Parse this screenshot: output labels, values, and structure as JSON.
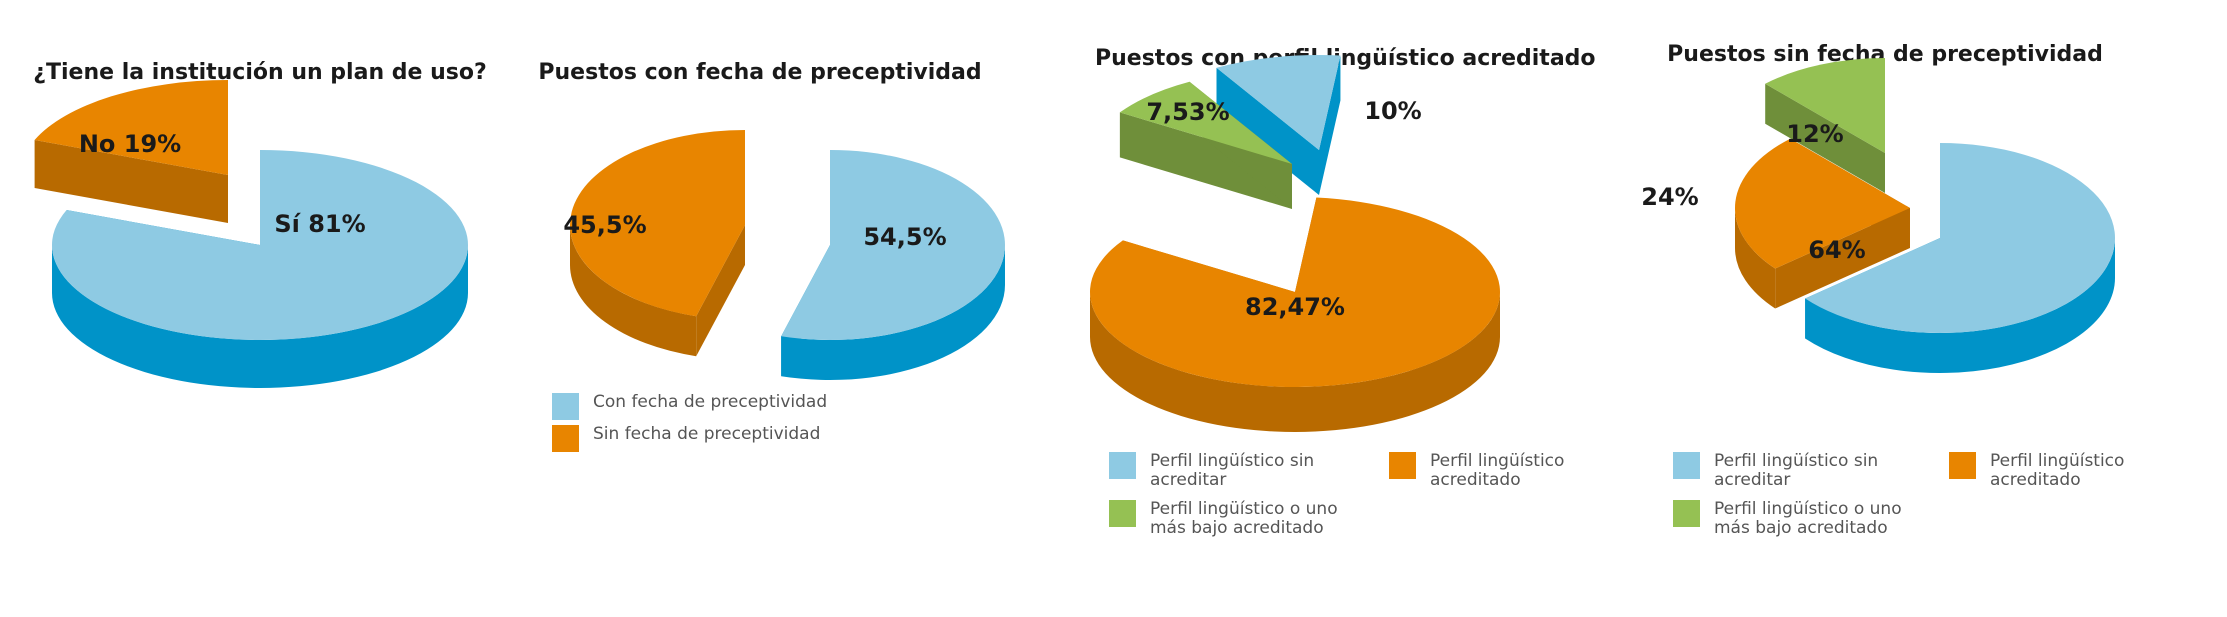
{
  "colors": {
    "light_blue": "#8ecae3",
    "dark_blue": "#0093c8",
    "orange": "#e88500",
    "dark_orange": "#b86a00",
    "green": "#95c153",
    "dark_green": "#6f8f3a"
  },
  "chart_data": [
    {
      "type": "pie",
      "title": "¿Tiene la institución un plan de uso?",
      "slices": [
        {
          "label": "Sí 81%",
          "value": 81,
          "color": "light_blue"
        },
        {
          "label": "No 19%",
          "value": 19,
          "color": "orange",
          "exploded": true
        }
      ],
      "legend": []
    },
    {
      "type": "pie",
      "title": "Puestos con fecha de preceptividad",
      "slices": [
        {
          "label": "54,5%",
          "value": 54.5,
          "color": "light_blue"
        },
        {
          "label": "45,5%",
          "value": 45.5,
          "color": "orange",
          "exploded": true
        }
      ],
      "legend": [
        {
          "text": "Con fecha de preceptividad",
          "color": "light_blue"
        },
        {
          "text": "Sin fecha de  preceptividad",
          "color": "orange"
        }
      ]
    },
    {
      "type": "pie",
      "title": "Puestos con perfil lingüístico acreditado",
      "slices": [
        {
          "label": "10%",
          "value": 10,
          "color": "light_blue",
          "exploded": true
        },
        {
          "label": "82,47%",
          "value": 82.47,
          "color": "orange"
        },
        {
          "label": "7,53%",
          "value": 7.53,
          "color": "green",
          "exploded": true
        }
      ],
      "legend": [
        {
          "text": "Perfil lingüístico sin acreditar",
          "color": "light_blue"
        },
        {
          "text": "Perfil lingüístico acreditado",
          "color": "orange"
        },
        {
          "text": "Perfil lingüístico o uno más bajo acreditado",
          "color": "green"
        }
      ]
    },
    {
      "type": "pie",
      "title": "Puestos sin fecha de preceptividad",
      "slices": [
        {
          "label": "64%",
          "value": 64,
          "color": "light_blue"
        },
        {
          "label": "24%",
          "value": 24,
          "color": "orange",
          "exploded": true
        },
        {
          "label": "12%",
          "value": 12,
          "color": "green",
          "exploded": true
        }
      ],
      "legend": [
        {
          "text": "Perfil lingüístico sin acreditar",
          "color": "light_blue"
        },
        {
          "text": "Perfil lingüístico acreditado",
          "color": "orange"
        },
        {
          "text": "Perfil lingüístico o uno más bajo acreditado",
          "color": "green"
        }
      ]
    }
  ]
}
